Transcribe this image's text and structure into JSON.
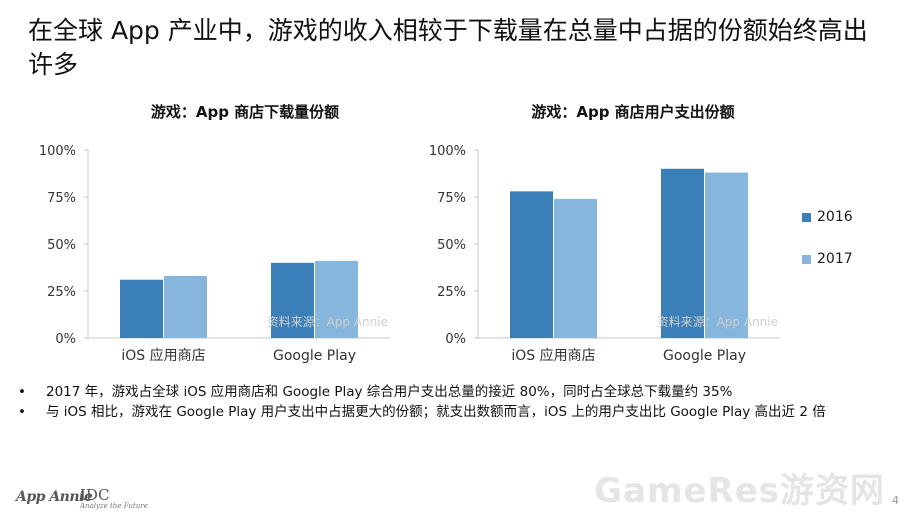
{
  "title": "在全球 App 产业中，游戏的收入相较于下载量在总量中占据的份额始终高出许多",
  "charts": [
    {
      "type": "bar",
      "title": "游戏：App 商店下载量份额",
      "categories": [
        "iOS 应用商店",
        "Google Play"
      ],
      "series": [
        {
          "name": "2016",
          "values": [
            31,
            40
          ],
          "color": "#3a7fb8"
        },
        {
          "name": "2017",
          "values": [
            33,
            41
          ],
          "color": "#86b6db"
        }
      ],
      "yticks": [
        "0%",
        "25%",
        "50%",
        "75%",
        "100%"
      ],
      "ylim": [
        0,
        100
      ],
      "source": "资料来源：App Annie"
    },
    {
      "type": "bar",
      "title": "游戏：App 商店用户支出份额",
      "categories": [
        "iOS 应用商店",
        "Google Play"
      ],
      "series": [
        {
          "name": "2016",
          "values": [
            78,
            90
          ],
          "color": "#3a7fb8"
        },
        {
          "name": "2017",
          "values": [
            74,
            88
          ],
          "color": "#86b6db"
        }
      ],
      "yticks": [
        "0%",
        "25%",
        "50%",
        "75%",
        "100%"
      ],
      "ylim": [
        0,
        100
      ],
      "source": "资料来源：App Annie"
    }
  ],
  "legend": {
    "placement": "right",
    "items": [
      {
        "label": "2016",
        "color": "#3a7fb8"
      },
      {
        "label": "2017",
        "color": "#86b6db"
      }
    ]
  },
  "bullets": [
    "2017 年，游戏占全球 iOS 应用商店和 Google Play 综合用户支出总量的接近 80%，同时占全球总下载量约 35%",
    "与 iOS 相比，游戏在 Google Play 用户支出中占据更大的份额；就支出数额而言，iOS 上的用户支出比 Google Play 高出近 2 倍"
  ],
  "bullet_marker": "•",
  "footer": {
    "logo_left": "App Annie",
    "logo_right": "IDC",
    "logo_right_tagline": "Analyze the Future",
    "watermark": "GameRes游资网",
    "page_number": "4"
  }
}
